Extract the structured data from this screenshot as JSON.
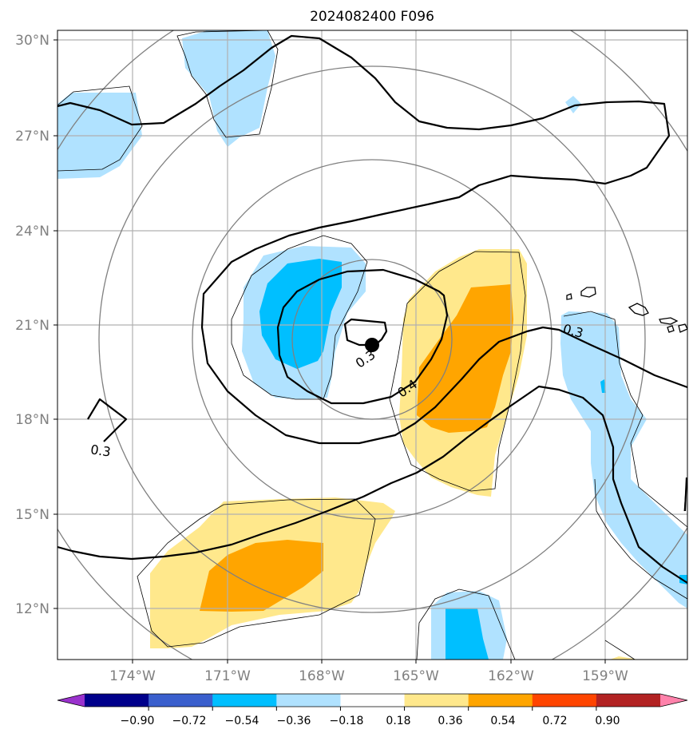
{
  "title": "2024082400 F096",
  "map": {
    "lon_ticks": [
      "174°W",
      "171°W",
      "168°W",
      "165°W",
      "162°W",
      "159°W"
    ],
    "lat_ticks": [
      "30°N",
      "27°N",
      "24°N",
      "21°N",
      "18°N",
      "15°N",
      "12°N"
    ],
    "contour_labels": [
      "0.3",
      "0.3",
      "0.4",
      "0.3"
    ],
    "storm_marker": "storm-center"
  },
  "colorbar": {
    "ticks": [
      "−0.90",
      "−0.72",
      "−0.54",
      "−0.36",
      "−0.18",
      "0.18",
      "0.36",
      "0.54",
      "0.72",
      "0.90"
    ],
    "colors": [
      "#9a32cd",
      "#00008b",
      "#3a5fcd",
      "#00bfff",
      "#b0e2ff",
      "#ffffff",
      "#ffe88c",
      "#ffa500",
      "#ff4500",
      "#b22222",
      "#ff82ab"
    ]
  },
  "fill_colors": {
    "light_blue": "#b0e2ff",
    "blue": "#00bfff",
    "light_yellow": "#ffe88c",
    "orange": "#ffa500"
  }
}
